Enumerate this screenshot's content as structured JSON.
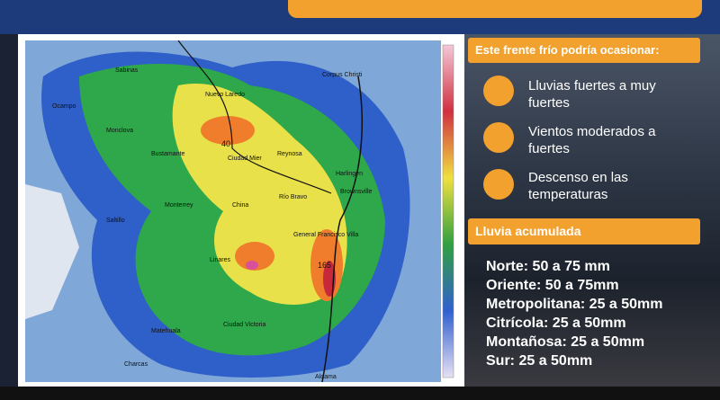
{
  "panel": {
    "heading": "Este frente  frío podría ocasionar:",
    "effects": [
      "Lluvias fuertes a muy fuertes",
      "Vientos moderados a fuertes",
      "Descenso en las temperaturas"
    ],
    "accumulated_heading": "Lluvia acumulada",
    "accumulated": [
      "Norte: 50 a 75 mm",
      "Oriente: 50 a 75mm",
      "Metropolitana: 25 a 50mm",
      "Citrícola: 25 a 50mm",
      "Montañosa: 25 a 50mm",
      "Sur: 25 a 50mm"
    ]
  },
  "map": {
    "places": [
      "Sabinas",
      "Corpus Christi",
      "Ocampo",
      "Nuevo Laredo",
      "Monclova",
      "Bustamante",
      "Ciudad Mier",
      "Reynosa",
      "Harlingen",
      "Río Bravo",
      "Brownsville",
      "Monterrey",
      "China",
      "Saltillo",
      "General Francisco Villa",
      "Linares",
      "Matehuala",
      "Ciudad Victoria",
      "Aldama",
      "Charcas"
    ],
    "annotations": [
      "40",
      "165"
    ]
  }
}
